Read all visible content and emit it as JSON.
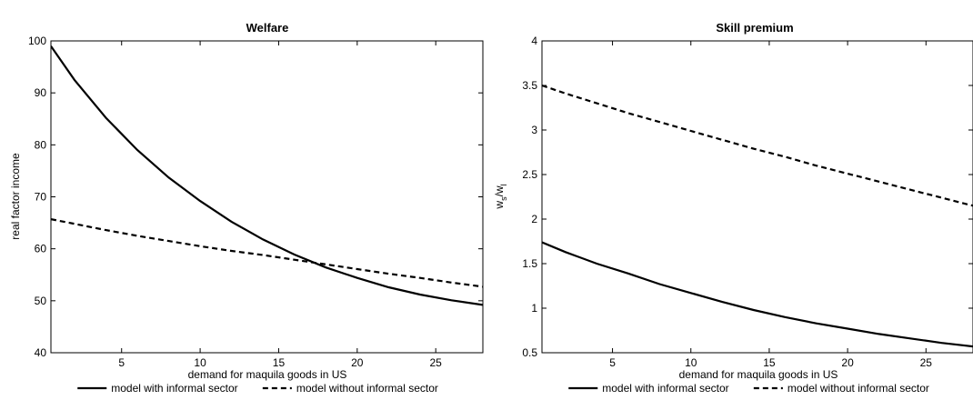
{
  "chart_data": [
    {
      "type": "line",
      "title": "Welfare",
      "xlabel": "demand for maquila goods in US",
      "ylabel": "real factor income",
      "xlim": [
        0.5,
        28
      ],
      "ylim": [
        40,
        100
      ],
      "xticks": [
        5,
        10,
        15,
        20,
        25
      ],
      "yticks": [
        40,
        50,
        60,
        70,
        80,
        90,
        100
      ],
      "grid": false,
      "legend_position": "bottom",
      "series": [
        {
          "name": "model with informal sector",
          "style": "solid",
          "x": [
            0.5,
            2,
            4,
            6,
            8,
            10,
            12,
            14,
            16,
            18,
            20,
            22,
            24,
            26,
            28
          ],
          "y": [
            99,
            92.5,
            85.2,
            79.0,
            73.7,
            69.2,
            65.2,
            61.8,
            58.9,
            56.4,
            54.4,
            52.6,
            51.2,
            50.1,
            49.2
          ]
        },
        {
          "name": "model without informal sector",
          "style": "dashed",
          "x": [
            0.5,
            2,
            4,
            6,
            8,
            10,
            12,
            14,
            16,
            18,
            20,
            22,
            24,
            26,
            28
          ],
          "y": [
            65.7,
            64.8,
            63.6,
            62.5,
            61.5,
            60.5,
            59.6,
            58.8,
            57.9,
            57.0,
            56.1,
            55.2,
            54.4,
            53.5,
            52.7
          ]
        }
      ]
    },
    {
      "type": "line",
      "title": "Skill premium",
      "xlabel": "demand for maquila goods in US",
      "ylabel": "w_s/w_l",
      "ylabel_main": "w",
      "ylabel_sub1": "s",
      "ylabel_mid": "/w",
      "ylabel_sub2": "l",
      "xlim": [
        0.5,
        28
      ],
      "ylim": [
        0.5,
        4
      ],
      "xticks": [
        5,
        10,
        15,
        20,
        25
      ],
      "yticks": [
        0.5,
        1,
        1.5,
        2,
        2.5,
        3,
        3.5,
        4
      ],
      "grid": false,
      "legend_position": "bottom",
      "series": [
        {
          "name": "model with informal sector",
          "style": "solid",
          "x": [
            0.5,
            2,
            4,
            6,
            8,
            10,
            12,
            14,
            16,
            18,
            20,
            22,
            24,
            26,
            28
          ],
          "y": [
            1.74,
            1.63,
            1.5,
            1.39,
            1.27,
            1.17,
            1.07,
            0.98,
            0.9,
            0.83,
            0.77,
            0.71,
            0.66,
            0.61,
            0.57
          ]
        },
        {
          "name": "model without informal sector",
          "style": "dashed",
          "x": [
            0.5,
            2,
            4,
            6,
            8,
            10,
            12,
            14,
            16,
            18,
            20,
            22,
            24,
            26,
            28
          ],
          "y": [
            3.5,
            3.41,
            3.3,
            3.19,
            3.09,
            2.99,
            2.89,
            2.79,
            2.7,
            2.6,
            2.51,
            2.42,
            2.33,
            2.24,
            2.15
          ]
        }
      ]
    }
  ]
}
